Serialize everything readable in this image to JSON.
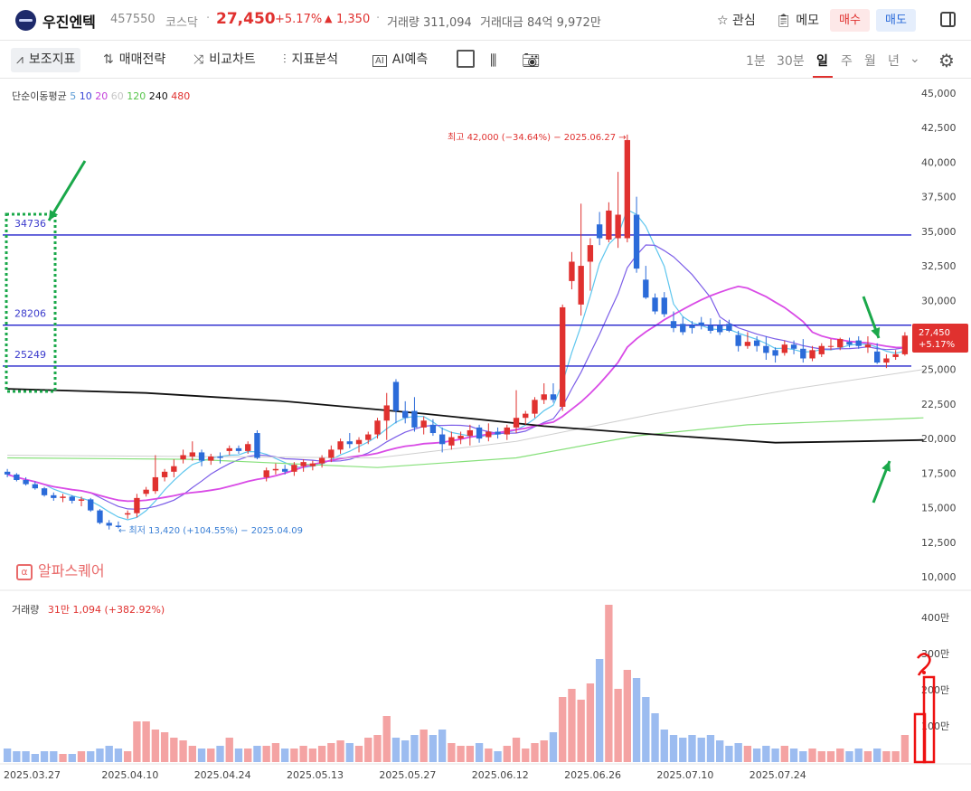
{
  "header": {
    "name": "우진엔텍",
    "code": "457550",
    "market": "코스닥",
    "price": "27,450",
    "rate": "+5.17%",
    "change_arrow": "▲",
    "change": "1,350",
    "volume": "거래량 311,094",
    "amount": "거래대금 84억 9,972만",
    "fav_label": "관심",
    "memo_label": "메모",
    "buy_label": "매수",
    "sell_label": "매도"
  },
  "toolbar": {
    "indicators": "보조지표",
    "strategy": "매매전략",
    "compare": "비교차트",
    "pattern": "지표분석",
    "ai": "AI예측",
    "timeframes": [
      "1분",
      "30분",
      "일",
      "주",
      "월",
      "년"
    ],
    "selected_timeframe": "일"
  },
  "legend": {
    "ma_title": "단순이동평균",
    "ma_periods": [
      {
        "label": "5",
        "color": "#5b9bd5"
      },
      {
        "label": "10",
        "color": "#3b48d6"
      },
      {
        "label": "20",
        "color": "#c43fdb"
      },
      {
        "label": "60",
        "color": "#c6c6c6"
      },
      {
        "label": "120",
        "color": "#56c44a"
      },
      {
        "label": "240",
        "color": "#111111"
      },
      {
        "label": "480",
        "color": "#e0312f"
      }
    ],
    "volume_title": "거래량",
    "volume_value": "31만 1,094 (+382.92%)"
  },
  "brand": "알파스퀘어",
  "colors": {
    "up": "#e0312f",
    "down": "#2b6bd9",
    "level_line": "#2222cc",
    "annotation": "#1aa84a"
  },
  "chart_data": {
    "type": "candlestick",
    "y_ticks": [
      "45,000",
      "42,500",
      "40,000",
      "37,500",
      "35,000",
      "32,500",
      "30,000",
      "27,500",
      "25,000",
      "22,500",
      "20,000",
      "17,500",
      "15,000",
      "12,500",
      "10,000"
    ],
    "ylim": [
      10000,
      45000
    ],
    "volume_ticks": [
      "400만",
      "300만",
      "200만",
      "100만"
    ],
    "x_labels": [
      "2025.03.27",
      "2025.04.10",
      "2025.04.24",
      "2025.05.13",
      "2025.05.27",
      "2025.06.12",
      "2025.06.26",
      "2025.07.10",
      "2025.07.24"
    ],
    "high_label": "최고 42,000 (−34.64%) − 2025.06.27 →",
    "low_label": "← 최저 13,420 (+104.55%) − 2025.04.09",
    "current_label_price": "27,450",
    "current_label_rate": "+5.17%",
    "horizontal_levels": [
      {
        "label": "34736",
        "value": 34736
      },
      {
        "label": "28206",
        "value": 28206
      },
      {
        "label": "25249",
        "value": 25249
      }
    ],
    "candles": [
      [
        17600,
        17800,
        17200,
        17400
      ],
      [
        17400,
        17500,
        16900,
        17000
      ],
      [
        17000,
        17200,
        16600,
        16700
      ],
      [
        16700,
        16900,
        16300,
        16400
      ],
      [
        16400,
        16500,
        15800,
        15900
      ],
      [
        15900,
        16100,
        15500,
        15700
      ],
      [
        15700,
        16000,
        15400,
        15800
      ],
      [
        15800,
        15900,
        15300,
        15500
      ],
      [
        15500,
        15800,
        15100,
        15600
      ],
      [
        15600,
        15700,
        14700,
        14800
      ],
      [
        14800,
        14900,
        13800,
        13900
      ],
      [
        13900,
        14100,
        13420,
        13700
      ],
      [
        13700,
        14000,
        13500,
        13600
      ],
      [
        14500,
        14800,
        14200,
        14600
      ],
      [
        14600,
        16000,
        14300,
        15700
      ],
      [
        16000,
        16500,
        15800,
        16300
      ],
      [
        16200,
        18800,
        16000,
        17200
      ],
      [
        17200,
        17800,
        16900,
        17600
      ],
      [
        17600,
        18500,
        17200,
        18000
      ],
      [
        18500,
        19200,
        18200,
        18800
      ],
      [
        18700,
        19800,
        18400,
        19000
      ],
      [
        19000,
        19200,
        18000,
        18400
      ],
      [
        18400,
        18900,
        18100,
        18700
      ],
      [
        18700,
        19000,
        18200,
        18600
      ],
      [
        19100,
        19500,
        18800,
        19300
      ],
      [
        19300,
        19500,
        18900,
        19100
      ],
      [
        19100,
        19800,
        18900,
        19600
      ],
      [
        20400,
        20600,
        18500,
        18600
      ],
      [
        17200,
        17900,
        16900,
        17700
      ],
      [
        17700,
        18200,
        17400,
        17800
      ],
      [
        17800,
        18100,
        17400,
        17600
      ],
      [
        17600,
        18300,
        17300,
        18100
      ],
      [
        18000,
        18500,
        17600,
        18300
      ],
      [
        18000,
        18400,
        17700,
        18200
      ],
      [
        18200,
        18800,
        17900,
        18600
      ],
      [
        18600,
        19500,
        18300,
        19200
      ],
      [
        19200,
        20000,
        18900,
        19800
      ],
      [
        19800,
        20400,
        19300,
        19600
      ],
      [
        19600,
        20100,
        19000,
        19900
      ],
      [
        19900,
        20500,
        19600,
        20300
      ],
      [
        20300,
        21500,
        20000,
        21300
      ],
      [
        21300,
        23300,
        19900,
        22400
      ],
      [
        24100,
        24300,
        21100,
        22000
      ],
      [
        22000,
        22700,
        21100,
        21500
      ],
      [
        22000,
        23000,
        20500,
        20800
      ],
      [
        20800,
        21600,
        20300,
        21300
      ],
      [
        21000,
        21400,
        20200,
        20400
      ],
      [
        20300,
        20800,
        19000,
        19600
      ],
      [
        19500,
        20500,
        19200,
        20100
      ],
      [
        20000,
        20500,
        19600,
        20200
      ],
      [
        20200,
        21000,
        19500,
        20600
      ],
      [
        20800,
        21000,
        19700,
        20000
      ],
      [
        20100,
        21100,
        19800,
        20500
      ],
      [
        20500,
        20800,
        20000,
        20300
      ],
      [
        20300,
        21000,
        19900,
        20800
      ],
      [
        20800,
        23500,
        20400,
        21500
      ],
      [
        21500,
        22000,
        21000,
        21800
      ],
      [
        21800,
        23000,
        21500,
        22800
      ],
      [
        22800,
        24000,
        22500,
        23200
      ],
      [
        23200,
        24000,
        22600,
        22800
      ],
      [
        22300,
        29700,
        22000,
        29500
      ],
      [
        31400,
        33500,
        30800,
        32800
      ],
      [
        29700,
        37000,
        28900,
        32500
      ],
      [
        32800,
        34500,
        30700,
        34000
      ],
      [
        35500,
        36400,
        34000,
        34500
      ],
      [
        34400,
        37100,
        34200,
        36500
      ],
      [
        34500,
        39300,
        33800,
        36200
      ],
      [
        34500,
        42000,
        34200,
        41600
      ],
      [
        36200,
        37500,
        32000,
        32300
      ],
      [
        31500,
        32500,
        30100,
        30200
      ],
      [
        30200,
        30500,
        29000,
        29200
      ],
      [
        30200,
        30600,
        28800,
        29000
      ],
      [
        28500,
        29200,
        27700,
        28000
      ],
      [
        28300,
        28800,
        27500,
        27700
      ],
      [
        28200,
        28500,
        27600,
        28000
      ],
      [
        28400,
        28800,
        27900,
        28200
      ],
      [
        28200,
        28700,
        27600,
        27800
      ],
      [
        28200,
        28600,
        27500,
        27700
      ],
      [
        28300,
        28600,
        27700,
        27800
      ],
      [
        27500,
        27800,
        26300,
        26700
      ],
      [
        26700,
        27700,
        26500,
        27000
      ],
      [
        27100,
        27400,
        26300,
        26700
      ],
      [
        26700,
        27400,
        25700,
        26200
      ],
      [
        26400,
        26600,
        25500,
        26000
      ],
      [
        26200,
        27100,
        26000,
        26800
      ],
      [
        26800,
        27100,
        26100,
        26500
      ],
      [
        26500,
        27200,
        25500,
        25800
      ],
      [
        25800,
        26700,
        25600,
        26400
      ],
      [
        26100,
        26900,
        25900,
        26700
      ],
      [
        26700,
        27200,
        26400,
        26700
      ],
      [
        26600,
        27300,
        26400,
        27200
      ],
      [
        27000,
        27300,
        26600,
        26800
      ],
      [
        27100,
        27400,
        26500,
        26700
      ],
      [
        26600,
        27400,
        26200,
        26800
      ],
      [
        26300,
        26900,
        25400,
        25500
      ],
      [
        25500,
        26100,
        25100,
        25800
      ],
      [
        25900,
        26400,
        25700,
        26100
      ],
      [
        26100,
        27700,
        26000,
        27450
      ]
    ],
    "volumes": [
      0.05,
      0.04,
      0.04,
      0.03,
      0.04,
      0.04,
      0.03,
      0.03,
      0.04,
      0.04,
      0.05,
      0.06,
      0.05,
      0.04,
      0.15,
      0.15,
      0.12,
      0.11,
      0.09,
      0.08,
      0.06,
      0.05,
      0.05,
      0.06,
      0.09,
      0.05,
      0.05,
      0.06,
      0.06,
      0.07,
      0.05,
      0.05,
      0.06,
      0.05,
      0.06,
      0.07,
      0.08,
      0.07,
      0.06,
      0.09,
      0.1,
      0.17,
      0.09,
      0.08,
      0.1,
      0.12,
      0.1,
      0.12,
      0.07,
      0.06,
      0.06,
      0.07,
      0.05,
      0.04,
      0.06,
      0.09,
      0.05,
      0.07,
      0.08,
      0.11,
      0.24,
      0.27,
      0.23,
      0.29,
      0.38,
      0.58,
      0.27,
      0.34,
      0.31,
      0.24,
      0.18,
      0.12,
      0.1,
      0.09,
      0.1,
      0.09,
      0.1,
      0.08,
      0.06,
      0.07,
      0.06,
      0.05,
      0.06,
      0.05,
      0.06,
      0.05,
      0.04,
      0.05,
      0.04,
      0.04,
      0.05,
      0.04,
      0.05,
      0.04,
      0.05,
      0.04,
      0.04,
      0.1
    ]
  }
}
